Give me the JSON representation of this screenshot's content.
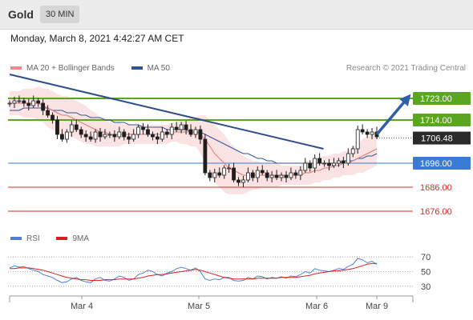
{
  "header": {
    "symbol": "Gold",
    "timeframe": "30 MIN"
  },
  "datetime": "Monday, March 8, 2021 4:42:27 AM CET",
  "credit": "Research © 2021 Trading Central",
  "legend_main": [
    {
      "label": "MA 20 + Bollinger Bands",
      "color": "#f08a8a"
    },
    {
      "label": "MA 50",
      "color": "#2f5597"
    }
  ],
  "legend_rsi": [
    {
      "label": "RSI",
      "color": "#4f7fd8"
    },
    {
      "label": "9MA",
      "color": "#d62020"
    }
  ],
  "chart_data": [
    {
      "type": "candlestick",
      "x_ticks": [
        "Mar 4",
        "Mar 5",
        "Mar 6",
        "Mar 9"
      ],
      "ylim": [
        1670,
        1732
      ],
      "last_price": 1706.48,
      "levels": [
        {
          "value": 1723.0,
          "label": "1723.00",
          "kind": "resistance",
          "color": "#5aa61e"
        },
        {
          "value": 1714.0,
          "label": "1714.00",
          "kind": "resistance",
          "color": "#5aa61e"
        },
        {
          "value": 1696.0,
          "label": "1696.00",
          "kind": "pivot",
          "color": "#3a7bd5"
        },
        {
          "value": 1686.0,
          "label": "1686.00",
          "kind": "support",
          "color": "#d62828"
        },
        {
          "value": 1676.0,
          "label": "1676.00",
          "kind": "support",
          "color": "#d62828"
        }
      ],
      "trendline": {
        "from": {
          "t": 0.0,
          "price": 1733
        },
        "to": {
          "t": 0.855,
          "price": 1702
        }
      },
      "target_arrow": {
        "from_price": 1708,
        "to_price": 1723
      },
      "close": [
        1721,
        1722,
        1722,
        1721,
        1720,
        1722,
        1721,
        1718,
        1716,
        1714,
        1708,
        1706,
        1709,
        1712,
        1710,
        1708,
        1707,
        1706,
        1709,
        1707,
        1708,
        1708,
        1707,
        1709,
        1707,
        1706,
        1708,
        1711,
        1710,
        1708,
        1707,
        1706,
        1709,
        1708,
        1711,
        1710,
        1712,
        1710,
        1708,
        1710,
        1706,
        1692,
        1690,
        1692,
        1691,
        1694,
        1694,
        1689,
        1688,
        1689,
        1692,
        1690,
        1693,
        1692,
        1690,
        1691,
        1690,
        1691,
        1690,
        1692,
        1691,
        1693,
        1696,
        1694,
        1698,
        1696,
        1696,
        1695,
        1696,
        1697,
        1696,
        1700,
        1702,
        1710,
        1709,
        1708,
        1709,
        1707
      ],
      "ma20": [
        1721,
        1721,
        1721,
        1721,
        1721,
        1721,
        1721,
        1720,
        1719,
        1718,
        1717,
        1716,
        1716,
        1715,
        1714,
        1713,
        1712,
        1711,
        1710,
        1709,
        1709,
        1708,
        1708,
        1708,
        1708,
        1708,
        1708,
        1708,
        1708,
        1708,
        1708,
        1708,
        1708,
        1708,
        1709,
        1709,
        1709,
        1709,
        1709,
        1709,
        1708,
        1706,
        1703,
        1700,
        1698,
        1696,
        1694,
        1693,
        1692,
        1691,
        1691,
        1691,
        1691,
        1691,
        1691,
        1691,
        1691,
        1691,
        1691,
        1691,
        1691,
        1691,
        1692,
        1692,
        1693,
        1693,
        1694,
        1694,
        1695,
        1695,
        1696,
        1696,
        1697,
        1698,
        1699,
        1700,
        1701,
        1702
      ],
      "bb_width": [
        5,
        5,
        5,
        6,
        6,
        6,
        7,
        7,
        8,
        8,
        8,
        8,
        8,
        8,
        8,
        8,
        8,
        7,
        7,
        6,
        6,
        5,
        5,
        5,
        4,
        4,
        4,
        4,
        4,
        4,
        4,
        4,
        4,
        4,
        4,
        4,
        5,
        5,
        6,
        6,
        8,
        10,
        11,
        12,
        12,
        12,
        11,
        10,
        9,
        8,
        7,
        6,
        6,
        5,
        5,
        5,
        5,
        4,
        4,
        4,
        4,
        4,
        5,
        5,
        5,
        5,
        5,
        5,
        5,
        5,
        5,
        5,
        6,
        6,
        7,
        7,
        7,
        7
      ],
      "ma50": [
        1718,
        1718,
        1718,
        1719,
        1719,
        1719,
        1719,
        1719,
        1719,
        1718,
        1718,
        1718,
        1717,
        1717,
        1717,
        1716,
        1716,
        1715,
        1715,
        1715,
        1714,
        1714,
        1713,
        1713,
        1713,
        1712,
        1712,
        1712,
        1711,
        1711,
        1711,
        1711,
        1711,
        1710,
        1710,
        1710,
        1710,
        1710,
        1709,
        1709,
        1709,
        1708,
        1707,
        1706,
        1705,
        1704,
        1703,
        1702,
        1701,
        1700,
        1700,
        1699,
        1698,
        1698,
        1697,
        1697,
        1696,
        1696,
        1696,
        1696,
        1696,
        1696,
        1696,
        1696,
        1696,
        1696,
        1696,
        1696,
        1696,
        1696,
        1697,
        1697,
        1697,
        1698,
        1698,
        1699,
        1699,
        1700
      ]
    },
    {
      "type": "line",
      "name": "RSI panel",
      "ylim": [
        20,
        80
      ],
      "y_ticks": [
        70,
        50,
        30
      ],
      "rsi": [
        55,
        58,
        56,
        57,
        54,
        52,
        50,
        46,
        44,
        42,
        38,
        35,
        36,
        40,
        42,
        38,
        36,
        35,
        40,
        42,
        38,
        37,
        40,
        44,
        42,
        38,
        40,
        46,
        48,
        52,
        50,
        46,
        44,
        48,
        50,
        54,
        56,
        54,
        52,
        55,
        50,
        40,
        38,
        40,
        39,
        42,
        42,
        38,
        37,
        38,
        42,
        40,
        44,
        43,
        40,
        42,
        41,
        43,
        41,
        44,
        43,
        46,
        50,
        48,
        54,
        52,
        51,
        50,
        52,
        54,
        53,
        57,
        60,
        68,
        66,
        62,
        64,
        60
      ],
      "ma9": [
        54,
        54,
        55,
        55,
        55,
        54,
        53,
        52,
        50,
        48,
        46,
        44,
        42,
        41,
        40,
        39,
        39,
        38,
        38,
        38,
        39,
        39,
        39,
        40,
        40,
        40,
        40,
        41,
        42,
        44,
        45,
        46,
        46,
        47,
        48,
        49,
        50,
        51,
        52,
        53,
        52,
        50,
        48,
        46,
        44,
        42,
        41,
        40,
        40,
        40,
        40,
        40,
        41,
        41,
        41,
        41,
        41,
        42,
        42,
        42,
        42,
        43,
        44,
        45,
        47,
        48,
        49,
        50,
        51,
        51,
        52,
        53,
        54,
        56,
        58,
        60,
        61,
        61
      ]
    }
  ]
}
